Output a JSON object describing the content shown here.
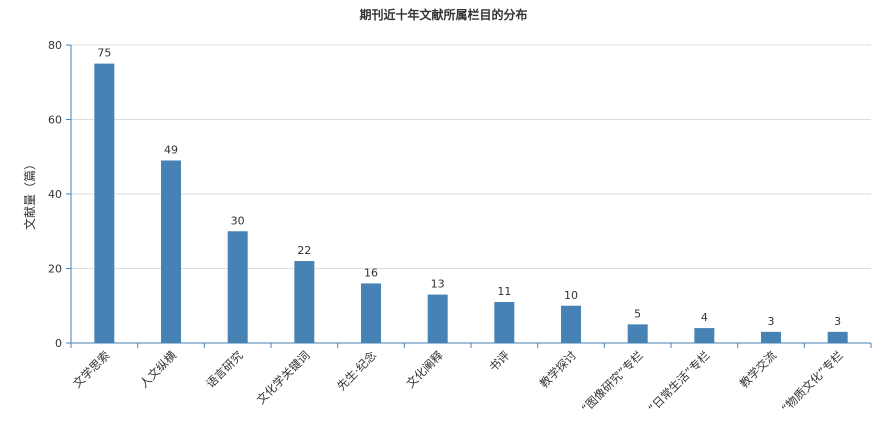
{
  "chart_data": {
    "type": "bar",
    "title": "期刊近十年文献所属栏目的分布",
    "xlabel": "",
    "ylabel": "文献量（篇）",
    "categories": [
      "文学思索",
      "人文纵横",
      "语言研究",
      "文化学关键词",
      "先生·纪念",
      "文化阐释",
      "书评",
      "教学探讨",
      "“图像研究”专栏",
      "“日常生活”专栏",
      "教学交流",
      "“物质文化”专栏"
    ],
    "values": [
      75,
      49,
      30,
      22,
      16,
      13,
      11,
      10,
      5,
      4,
      3,
      3
    ],
    "ylim": [
      0,
      80
    ],
    "yticks": [
      0,
      20,
      40,
      60,
      80
    ],
    "grid": true,
    "legend": "none",
    "bar_color": "#4682b4",
    "axis_color": "#4682b4",
    "grid_color": "#dddddd"
  }
}
